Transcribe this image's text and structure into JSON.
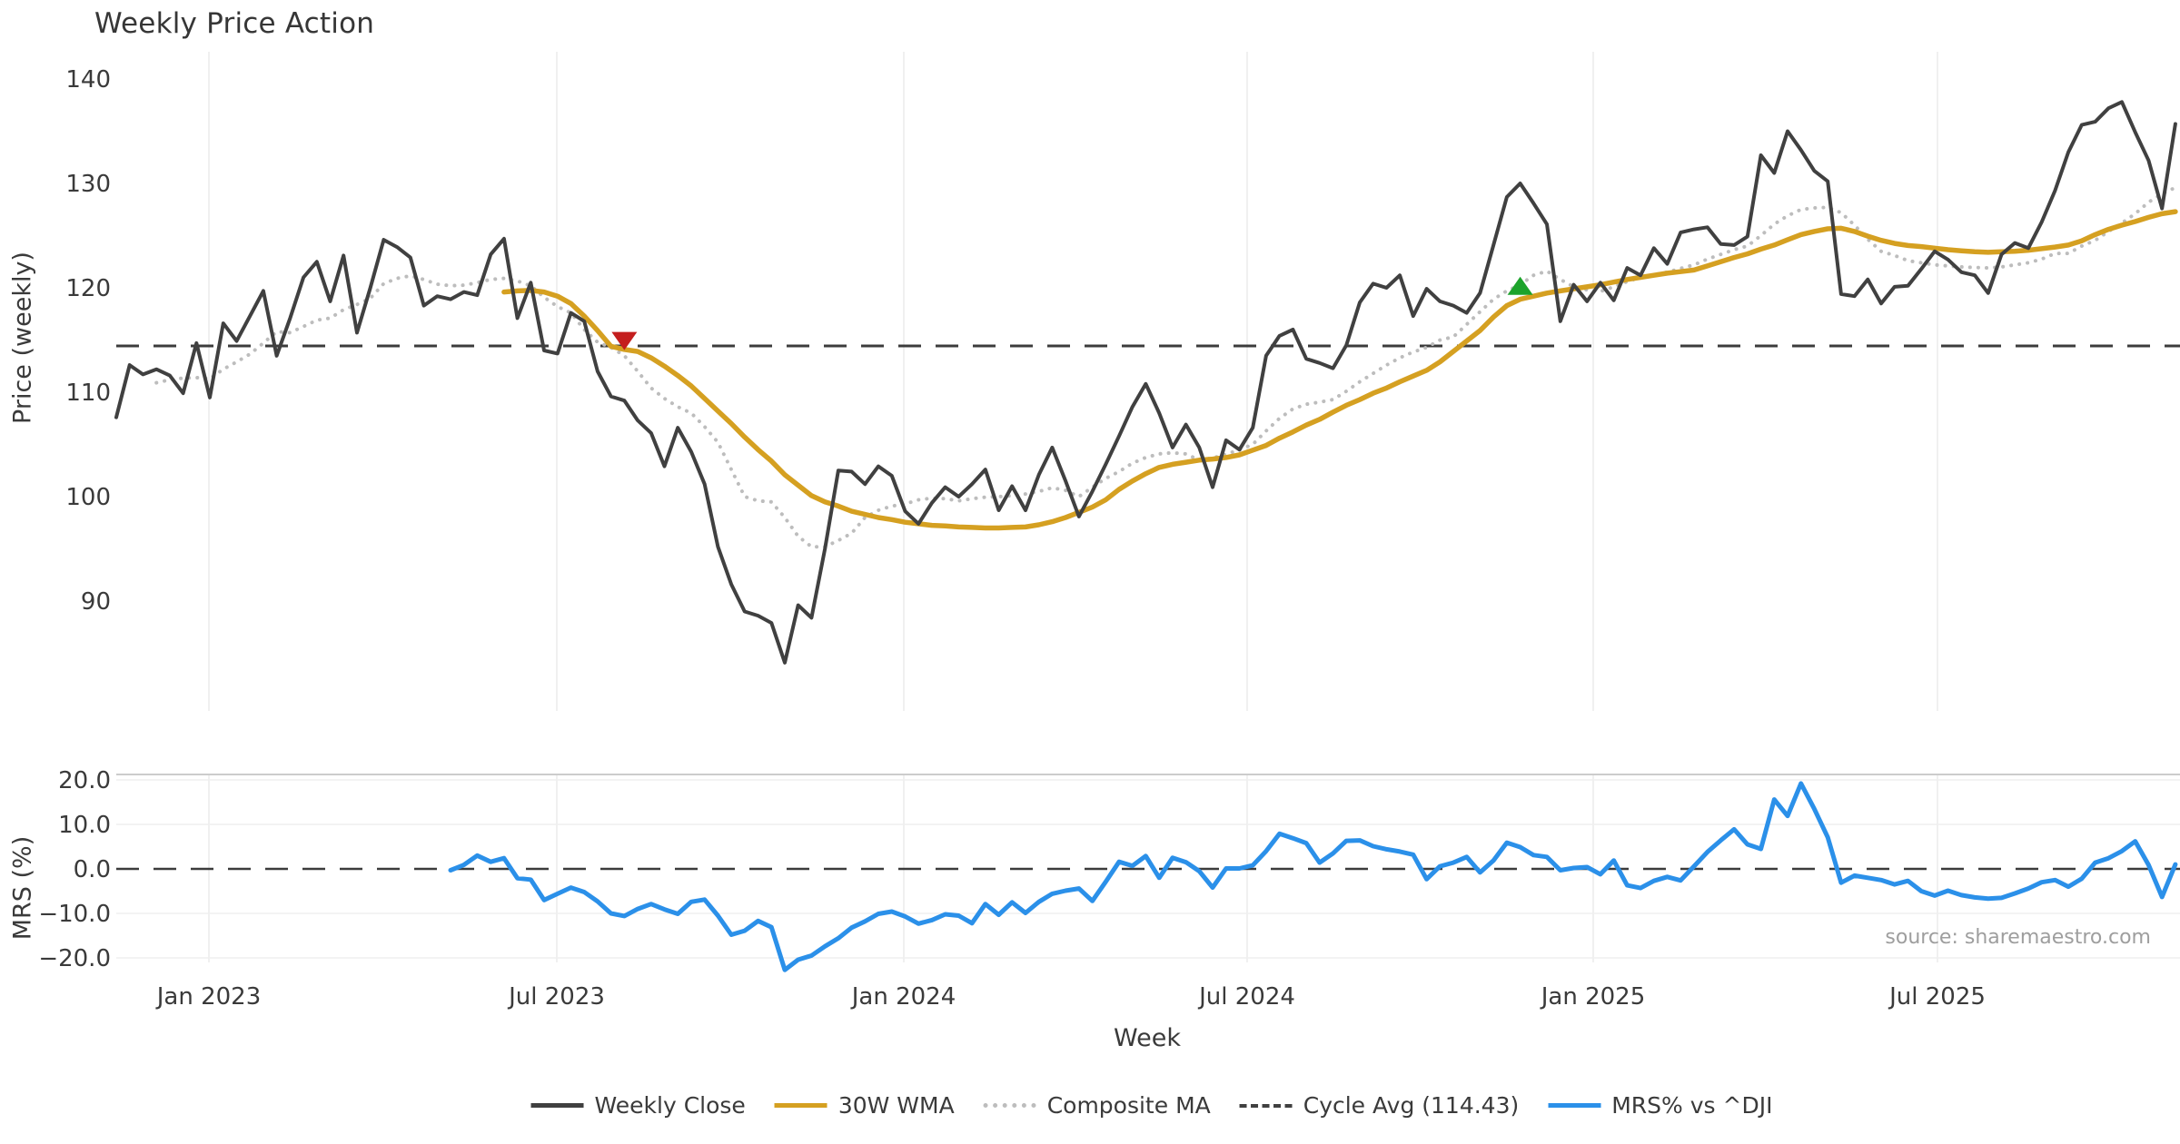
{
  "title": "Weekly Price Action",
  "source_note": "source: sharemaestro.com",
  "legend": [
    {
      "label": "Weekly Close",
      "type": "solid-line",
      "color": "#404040"
    },
    {
      "label": "30W WMA",
      "type": "solid-line",
      "color": "#D5A021"
    },
    {
      "label": "Composite MA",
      "type": "dotted-line",
      "color": "#BDBDBD"
    },
    {
      "label": "Cycle Avg (114.43)",
      "type": "dashed-line",
      "color": "#404040"
    },
    {
      "label": "MRS% vs ^DJI",
      "type": "solid-line",
      "color": "#2B90E9"
    }
  ],
  "chart_data": [
    {
      "type": "line",
      "panel": "price",
      "title": "Weekly Price Action",
      "ylabel": "Price (weekly)",
      "xlabel": "Week",
      "ylim": [
        79,
        142.5
      ],
      "yticks": [
        "140",
        "130",
        "120",
        "110",
        "100",
        "90"
      ],
      "ytick_values": [
        140,
        130,
        120,
        110,
        100,
        90
      ],
      "xticks": [
        "Jan 2023",
        "Jul 2023",
        "Jan 2024",
        "Jul 2024",
        "Jan 2025",
        "Jul 2025"
      ],
      "grid": "vertical-only",
      "cycle_avg": 114.43,
      "markers": [
        {
          "type": "sell-triangle-down",
          "week": 38,
          "value": 114.9,
          "color": "#C41E1E"
        },
        {
          "type": "buy-triangle-up",
          "week": 105,
          "value": 120.2,
          "color": "#1CA32B"
        }
      ],
      "series": [
        {
          "name": "Weekly Close",
          "color": "#404040",
          "style": "solid",
          "width": 4,
          "values": [
            107.6,
            112.6,
            111.7,
            112.2,
            111.6,
            109.9,
            114.7,
            109.5,
            116.6,
            114.9,
            117.3,
            119.7,
            113.5,
            117.1,
            121.0,
            122.5,
            118.7,
            123.1,
            115.7,
            120.0,
            124.6,
            123.9,
            122.9,
            118.3,
            119.2,
            118.9,
            119.6,
            119.3,
            123.2,
            124.7,
            117.1,
            120.5,
            114.0,
            113.7,
            117.6,
            116.8,
            112.0,
            109.6,
            109.2,
            107.3,
            106.1,
            102.9,
            106.6,
            104.3,
            101.2,
            95.2,
            91.6,
            89.0,
            88.6,
            87.9,
            84.1,
            89.6,
            88.4,
            95.0,
            102.5,
            102.4,
            101.2,
            102.9,
            102.0,
            98.6,
            97.4,
            99.4,
            100.9,
            100.0,
            101.2,
            102.6,
            98.7,
            101.0,
            98.7,
            102.1,
            104.7,
            101.5,
            98.1,
            100.5,
            103.1,
            105.8,
            108.6,
            110.8,
            108.0,
            104.7,
            106.9,
            104.7,
            100.9,
            105.4,
            104.5,
            106.6,
            113.5,
            115.4,
            116.0,
            113.2,
            112.8,
            112.3,
            114.5,
            118.6,
            120.4,
            120.0,
            121.2,
            117.3,
            119.9,
            118.7,
            118.3,
            117.6,
            119.5,
            124.1,
            128.7,
            130.0,
            128.1,
            126.1,
            116.8,
            120.3,
            118.7,
            120.5,
            118.8,
            121.9,
            121.2,
            123.8,
            122.3,
            125.3,
            125.6,
            125.8,
            124.2,
            124.1,
            124.9,
            132.7,
            131.0,
            135.0,
            133.2,
            131.2,
            130.2,
            119.4,
            119.2,
            120.8,
            118.5,
            120.1,
            120.2,
            121.8,
            123.5,
            122.7,
            121.5,
            121.2,
            119.5,
            123.2,
            124.3,
            123.8,
            126.3,
            129.3,
            133.0,
            135.6,
            135.9,
            137.2,
            137.8,
            134.9,
            132.2,
            127.6,
            135.7
          ]
        },
        {
          "name": "30W WMA",
          "color": "#D5A021",
          "style": "solid",
          "width": 5.5,
          "values": [
            null,
            null,
            null,
            null,
            null,
            null,
            null,
            null,
            null,
            null,
            null,
            null,
            null,
            null,
            null,
            null,
            null,
            null,
            null,
            null,
            null,
            null,
            null,
            null,
            null,
            null,
            null,
            null,
            null,
            119.6,
            119.7,
            119.75,
            119.6,
            119.2,
            118.5,
            117.3,
            115.9,
            114.4,
            114.1,
            113.9,
            113.3,
            112.5,
            111.6,
            110.6,
            109.4,
            108.2,
            107.0,
            105.7,
            104.5,
            103.4,
            102.1,
            101.1,
            100.1,
            99.5,
            99.1,
            98.6,
            98.3,
            98.0,
            97.8,
            97.55,
            97.4,
            97.25,
            97.2,
            97.1,
            97.05,
            97.0,
            97.0,
            97.05,
            97.1,
            97.3,
            97.6,
            98.0,
            98.5,
            99.0,
            99.7,
            100.7,
            101.5,
            102.2,
            102.8,
            103.1,
            103.3,
            103.5,
            103.6,
            103.75,
            104.0,
            104.45,
            104.9,
            105.6,
            106.2,
            106.85,
            107.4,
            108.1,
            108.75,
            109.3,
            109.9,
            110.4,
            111.0,
            111.55,
            112.1,
            112.9,
            113.9,
            114.9,
            115.9,
            117.2,
            118.3,
            118.9,
            119.2,
            119.5,
            119.7,
            119.9,
            120.1,
            120.3,
            120.55,
            120.8,
            121.0,
            121.2,
            121.4,
            121.55,
            121.7,
            122.1,
            122.5,
            122.9,
            123.25,
            123.7,
            124.1,
            124.6,
            125.1,
            125.4,
            125.65,
            125.7,
            125.4,
            124.95,
            124.55,
            124.25,
            124.05,
            123.95,
            123.8,
            123.65,
            123.55,
            123.45,
            123.4,
            123.45,
            123.5,
            123.6,
            123.75,
            123.9,
            124.1,
            124.5,
            125.1,
            125.6,
            126.0,
            126.35,
            126.75,
            127.1,
            127.3
          ]
        },
        {
          "name": "Composite MA",
          "color": "#BDBDBD",
          "style": "dotted",
          "width": 4,
          "values": [
            null,
            null,
            null,
            110.9,
            111.2,
            111.35,
            111.4,
            111.3,
            112.2,
            112.9,
            113.65,
            114.7,
            115.8,
            115.7,
            116.3,
            116.9,
            117.1,
            117.9,
            118.4,
            119.0,
            120.4,
            120.9,
            121.15,
            120.8,
            120.35,
            120.2,
            120.25,
            120.5,
            120.8,
            120.9,
            120.65,
            120.2,
            119.1,
            118.2,
            117.6,
            116.0,
            114.8,
            114.3,
            113.5,
            112.0,
            110.4,
            109.4,
            108.6,
            108.0,
            106.7,
            105.2,
            102.6,
            100.0,
            99.6,
            99.5,
            98.0,
            96.2,
            95.2,
            95.2,
            95.8,
            96.5,
            98.0,
            98.7,
            99.1,
            99.3,
            99.7,
            99.85,
            99.8,
            99.6,
            99.8,
            99.95,
            100.0,
            100.1,
            100.25,
            100.5,
            100.85,
            100.6,
            100.0,
            100.9,
            101.75,
            102.4,
            103.2,
            103.75,
            104.1,
            104.2,
            104.1,
            103.5,
            103.7,
            104.05,
            104.5,
            105.0,
            106.3,
            107.5,
            108.4,
            108.85,
            109.05,
            109.3,
            110.1,
            111.0,
            111.8,
            112.6,
            113.3,
            113.85,
            114.3,
            115.0,
            115.3,
            116.5,
            117.7,
            118.9,
            119.7,
            120.3,
            121.2,
            121.6,
            120.8,
            120.1,
            119.8,
            119.65,
            120.1,
            120.6,
            121.0,
            121.25,
            121.5,
            121.85,
            122.2,
            122.75,
            123.2,
            123.65,
            124.0,
            125.0,
            126.1,
            126.9,
            127.5,
            127.65,
            127.7,
            127.2,
            126.0,
            124.65,
            123.5,
            123.1,
            122.6,
            122.4,
            122.2,
            122.1,
            122.0,
            121.95,
            121.9,
            122.0,
            122.2,
            122.4,
            122.75,
            123.3,
            123.3,
            124.0,
            124.55,
            125.4,
            126.2,
            127.1,
            128.2,
            129.0,
            129.6
          ]
        }
      ]
    },
    {
      "type": "line",
      "panel": "mrs",
      "ylabel": "MRS (%)",
      "ylim": [
        -24,
        21.5
      ],
      "yticks": [
        "20.0",
        "10.0",
        "0.0",
        "−10.0",
        "−20.0"
      ],
      "ytick_values": [
        20,
        10,
        0,
        -10,
        -20
      ],
      "zero_line_dashed": 0,
      "series": [
        {
          "name": "MRS% vs ^DJI",
          "color": "#2B90E9",
          "style": "solid",
          "width": 5,
          "values": [
            null,
            null,
            null,
            null,
            null,
            null,
            null,
            null,
            null,
            null,
            null,
            null,
            null,
            null,
            null,
            null,
            null,
            null,
            null,
            null,
            null,
            null,
            null,
            null,
            null,
            -0.3,
            0.9,
            3.0,
            1.6,
            2.4,
            -2.1,
            -2.4,
            -7.0,
            -5.6,
            -4.2,
            -5.2,
            -7.3,
            -10.0,
            -10.6,
            -9.0,
            -7.9,
            -9.1,
            -10.1,
            -7.4,
            -6.9,
            -10.5,
            -14.8,
            -13.9,
            -11.7,
            -13.1,
            -22.7,
            -20.4,
            -19.5,
            -17.4,
            -15.6,
            -13.2,
            -11.8,
            -10.1,
            -9.6,
            -10.7,
            -12.3,
            -11.5,
            -10.2,
            -10.5,
            -12.2,
            -7.9,
            -10.3,
            -7.5,
            -9.9,
            -7.4,
            -5.6,
            -4.9,
            -4.4,
            -7.2,
            -2.9,
            1.6,
            0.7,
            2.9,
            -2.0,
            2.5,
            1.5,
            -0.5,
            -4.2,
            0.1,
            0.1,
            0.8,
            4.0,
            7.9,
            6.9,
            5.8,
            1.4,
            3.5,
            6.3,
            6.4,
            5.1,
            4.4,
            3.9,
            3.2,
            -2.3,
            0.6,
            1.4,
            2.7,
            -0.8,
            1.9,
            5.9,
            4.9,
            3.1,
            2.7,
            -0.3,
            0.2,
            0.4,
            -1.2,
            1.9,
            -3.7,
            -4.3,
            -2.7,
            -1.8,
            -2.6,
            0.6,
            3.8,
            6.4,
            8.9,
            5.5,
            4.5,
            15.6,
            11.9,
            19.2,
            13.5,
            7.1,
            -3.1,
            -1.5,
            -2.0,
            -2.5,
            -3.5,
            -2.7,
            -5.0,
            -6.0,
            -4.9,
            -5.9,
            -6.4,
            -6.7,
            -6.5,
            -5.5,
            -4.4,
            -3.0,
            -2.5,
            -4.0,
            -2.2,
            1.4,
            2.4,
            4.0,
            6.2,
            0.9,
            -6.3,
            1.0
          ]
        }
      ]
    }
  ]
}
